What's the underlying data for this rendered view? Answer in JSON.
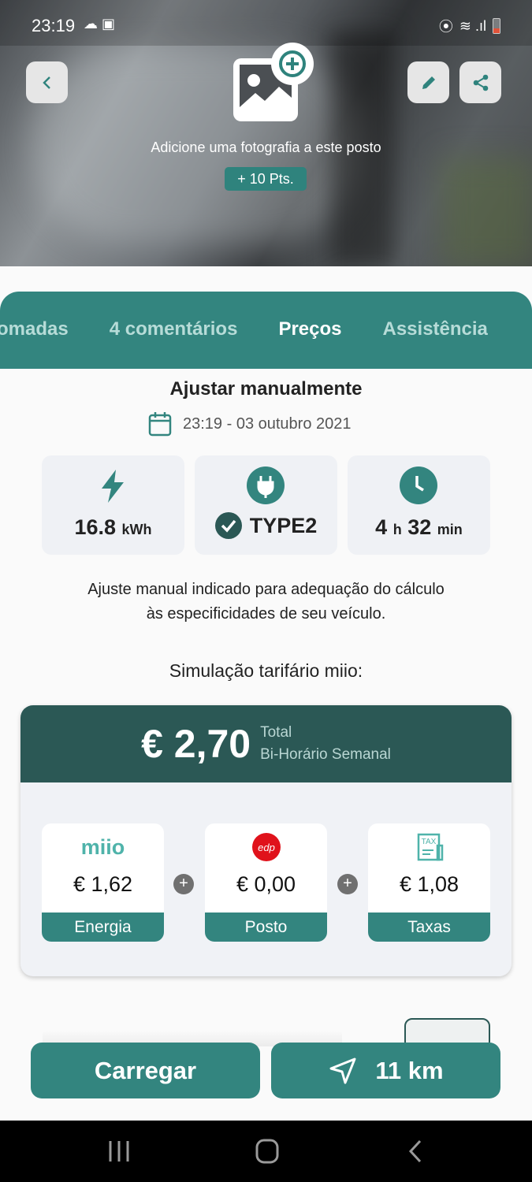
{
  "status_bar": {
    "time": "23:19"
  },
  "hero": {
    "add_photo_text": "Adicione uma fotografia a este posto",
    "points_badge": "+ 10 Pts."
  },
  "tabs": [
    {
      "label": "omadas"
    },
    {
      "label": "4 comentários"
    },
    {
      "label": "Preços",
      "active": true
    },
    {
      "label": "Assistência"
    }
  ],
  "main": {
    "title": "Ajustar manualmente",
    "datetime": "23:19 - 03 outubro 2021",
    "stats": {
      "energy_value": "16.8",
      "energy_unit": "kWh",
      "connector": "TYPE2",
      "hours": "4",
      "hours_unit": "h",
      "minutes": "32",
      "minutes_unit": "min"
    },
    "description_line1": "Ajuste manual indicado para adequação do cálculo",
    "description_line2": "às especificidades de seu veículo.",
    "simulation_title": "Simulação tarifário miio:"
  },
  "tariff": {
    "total": "€ 2,70",
    "total_label": "Total",
    "plan": "Bi-Horário Semanal",
    "parts": [
      {
        "logo": "miio",
        "amount": "€ 1,62",
        "label": "Energia"
      },
      {
        "logo": "edp",
        "amount": "€ 0,00",
        "label": "Posto"
      },
      {
        "logo": "TAX",
        "amount": "€ 1,08",
        "label": "Taxas"
      }
    ]
  },
  "actions": {
    "charge_label": "Carregar",
    "distance_label": "11 km"
  },
  "colors": {
    "accent": "#33857f",
    "dark_header": "#2b5855",
    "edp_red": "#e0121b"
  }
}
